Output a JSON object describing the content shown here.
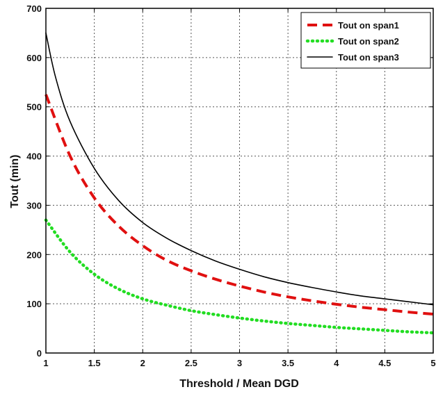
{
  "chart_data": {
    "type": "line",
    "xlabel": "Threshold / Mean DGD",
    "ylabel": "Tout (min)",
    "xlim": [
      1,
      5
    ],
    "ylim": [
      0,
      700
    ],
    "xticks": [
      1,
      1.5,
      2,
      2.5,
      3,
      3.5,
      4,
      4.5,
      5
    ],
    "yticks": [
      0,
      100,
      200,
      300,
      400,
      500,
      600,
      700
    ],
    "xtick_labels": [
      "1",
      "1.5",
      "2",
      "2.5",
      "3",
      "3.5",
      "4",
      "4.5",
      "5"
    ],
    "ytick_labels": [
      "0",
      "100",
      "200",
      "300",
      "400",
      "500",
      "600",
      "700"
    ],
    "grid": true,
    "legend_position": "top-right",
    "series": [
      {
        "name": "Tout on span1",
        "color": "#e01010",
        "style": "dashed",
        "x": [
          1,
          1.25,
          1.5,
          1.75,
          2,
          2.25,
          2.5,
          2.75,
          3,
          3.25,
          3.5,
          3.75,
          4,
          4.25,
          4.5,
          4.75,
          5
        ],
        "y": [
          525,
          400,
          315,
          258,
          218,
          188,
          167,
          150,
          136,
          124,
          114,
          106,
          99,
          93,
          88,
          83,
          79
        ]
      },
      {
        "name": "Tout on span2",
        "color": "#22dd22",
        "style": "dotted",
        "x": [
          1,
          1.25,
          1.5,
          1.75,
          2,
          2.25,
          2.5,
          2.75,
          3,
          3.25,
          3.5,
          3.75,
          4,
          4.25,
          4.5,
          4.75,
          5
        ],
        "y": [
          270,
          205,
          160,
          130,
          110,
          97,
          86,
          78,
          71,
          65,
          60,
          56,
          52,
          49,
          46,
          43,
          41
        ]
      },
      {
        "name": "Tout on span3",
        "color": "#000000",
        "style": "solid",
        "x": [
          1,
          1.1,
          1.25,
          1.5,
          1.75,
          2,
          2.25,
          2.5,
          2.75,
          3,
          3.25,
          3.5,
          3.75,
          4,
          4.25,
          4.5,
          4.75,
          5
        ],
        "y": [
          650,
          560,
          470,
          375,
          310,
          265,
          233,
          208,
          187,
          170,
          155,
          143,
          133,
          124,
          116,
          110,
          104,
          98
        ]
      }
    ]
  }
}
